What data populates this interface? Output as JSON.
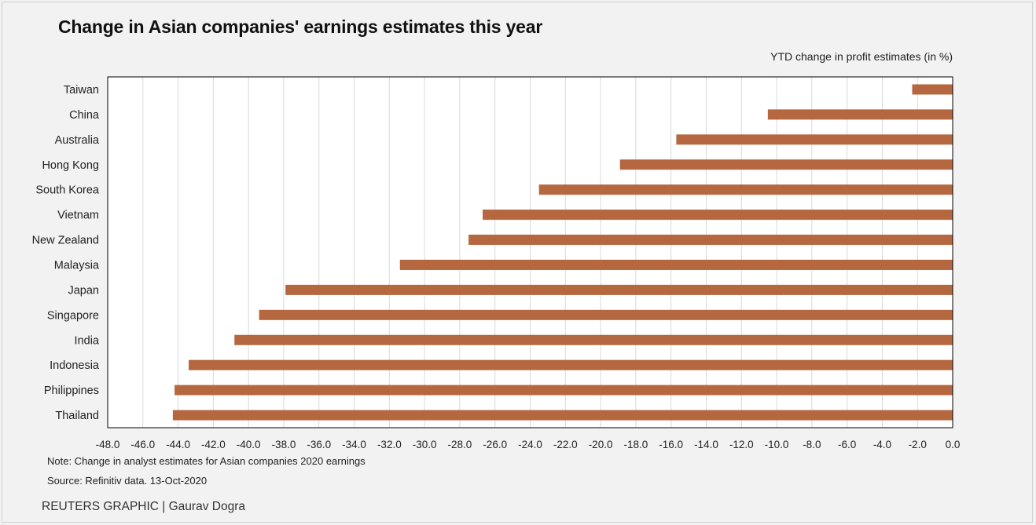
{
  "title": "Change in Asian companies' earnings estimates this year",
  "subtitle": "YTD change in profit estimates (in %)",
  "note": "Note: Change in analyst estimates for Asian companies 2020 earnings",
  "source": "Source: Refinitiv data.  13-Oct-2020",
  "credit": "REUTERS GRAPHIC | Gaurav Dogra",
  "colors": {
    "bar": "#b5673f",
    "grid": "#d9d9d9",
    "axis": "#000000"
  },
  "chart_data": {
    "type": "bar",
    "orientation": "horizontal",
    "categories": [
      "Taiwan",
      "China",
      "Australia",
      "Hong Kong",
      "South Korea",
      "Vietnam",
      "New Zealand",
      "Malaysia",
      "Japan",
      "Singapore",
      "India",
      "Indonesia",
      "Philippines",
      "Thailand"
    ],
    "values": [
      -2.3,
      -10.5,
      -15.7,
      -18.9,
      -23.5,
      -26.7,
      -27.5,
      -31.4,
      -37.9,
      -39.4,
      -40.8,
      -43.4,
      -44.2,
      -44.3
    ],
    "xlim": [
      -48,
      0
    ],
    "xticks": [
      "-48.0",
      "-46.0",
      "-44.0",
      "-42.0",
      "-40.0",
      "-38.0",
      "-36.0",
      "-34.0",
      "-32.0",
      "-30.0",
      "-28.0",
      "-26.0",
      "-24.0",
      "-22.0",
      "-20.0",
      "-18.0",
      "-16.0",
      "-14.0",
      "-12.0",
      "-10.0",
      "-8.0",
      "-6.0",
      "-4.0",
      "-2.0",
      "0.0"
    ],
    "grid": true,
    "xlabel": "",
    "ylabel": ""
  }
}
